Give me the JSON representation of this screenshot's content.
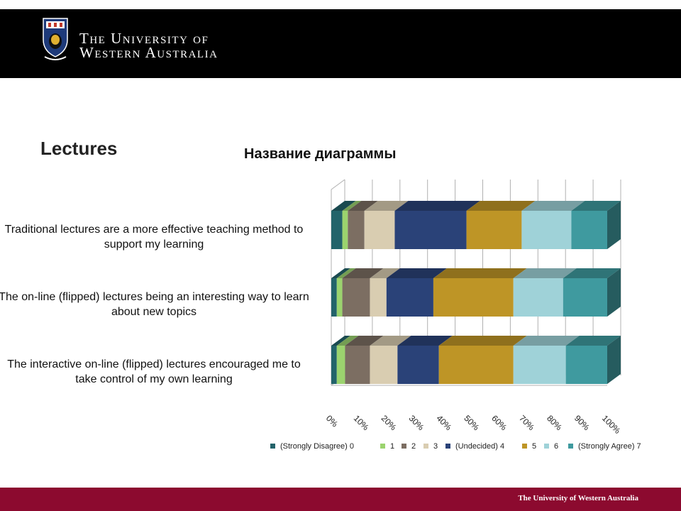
{
  "header": {
    "university_line1": "The University of",
    "university_line2": "Western Australia",
    "logo": "university-crest"
  },
  "slide": {
    "title": "Lectures"
  },
  "footer": {
    "text": "The University of Western Australia"
  },
  "colors": {
    "header_bg": "#000000",
    "footer_bg": "#8c0a2f",
    "series": [
      "#23636a",
      "#9bd36e",
      "#7c6e62",
      "#d9cdb1",
      "#2a4278",
      "#be9526",
      "#9fd2d8",
      "#3f9a9f"
    ]
  },
  "chart_data": {
    "type": "bar",
    "orientation": "horizontal",
    "stacked": "100%",
    "three_d": true,
    "title": "Название диаграммы",
    "categories": [
      "Traditional lectures are a more effective teaching method to support my learning",
      "The on-line (flipped) lectures being an interesting way to learn about new topics",
      "The interactive on-line (flipped) lectures encouraged me to take control of my own learning"
    ],
    "series": [
      {
        "name": "(Strongly Disagree) 0",
        "values": [
          4,
          2,
          2
        ]
      },
      {
        "name": "1",
        "values": [
          2,
          2,
          3
        ]
      },
      {
        "name": "2",
        "values": [
          6,
          10,
          9
        ]
      },
      {
        "name": "3",
        "values": [
          11,
          6,
          10
        ]
      },
      {
        "name": "(Undecided) 4",
        "values": [
          26,
          17,
          15
        ]
      },
      {
        "name": "5",
        "values": [
          20,
          29,
          27
        ]
      },
      {
        "name": "6",
        "values": [
          18,
          18,
          19
        ]
      },
      {
        "name": "(Strongly Agree) 7",
        "values": [
          13,
          16,
          15
        ]
      }
    ],
    "x_ticks": [
      "0%",
      "10%",
      "20%",
      "30%",
      "40%",
      "50%",
      "60%",
      "70%",
      "80%",
      "90%",
      "100%"
    ],
    "xlim": [
      0,
      100
    ],
    "grid": true,
    "legend_position": "bottom"
  }
}
